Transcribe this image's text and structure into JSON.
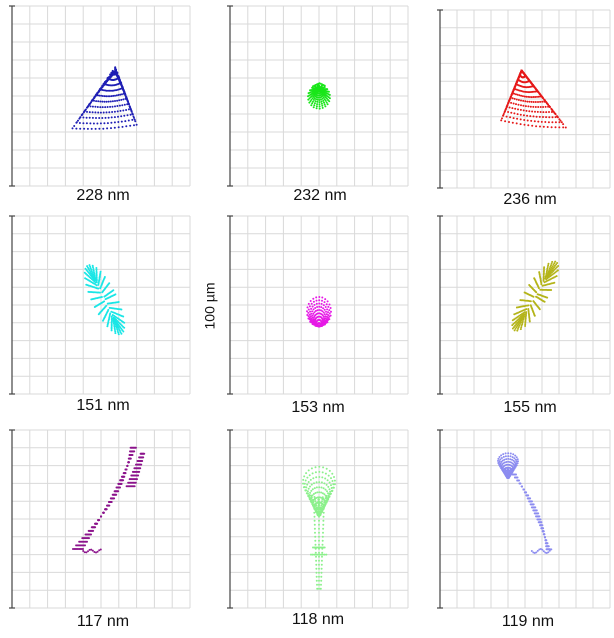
{
  "figure": {
    "scale_label": "100 µm",
    "colors": {
      "grid": "#d9d9d9",
      "axis": "#444444"
    },
    "panels": [
      {
        "caption": "228 nm",
        "color": "#1f1fb4",
        "shape": "triangle-left"
      },
      {
        "caption": "232 nm",
        "color": "#19e619",
        "shape": "drop-small"
      },
      {
        "caption": "236 nm",
        "color": "#e61919",
        "shape": "triangle-right"
      },
      {
        "caption": "151 nm",
        "color": "#19e6e6",
        "shape": "ellipse-tilt-left"
      },
      {
        "caption": "153 nm",
        "color": "#e619e6",
        "shape": "drop-inverted"
      },
      {
        "caption": "155 nm",
        "color": "#b4b419",
        "shape": "ellipse-tilt-right"
      },
      {
        "caption": "117 nm",
        "color": "#8c148c",
        "shape": "twist-left"
      },
      {
        "caption": "118 nm",
        "color": "#8cf08c",
        "shape": "twist-center"
      },
      {
        "caption": "119 nm",
        "color": "#8c8cf0",
        "shape": "twist-right"
      }
    ]
  }
}
